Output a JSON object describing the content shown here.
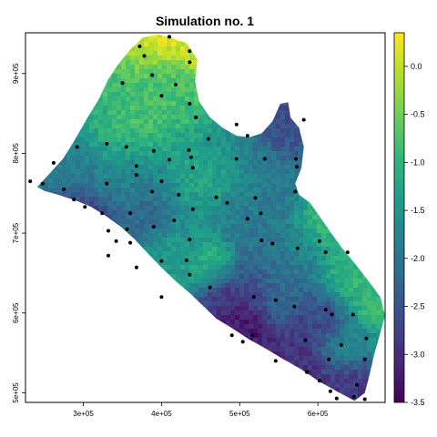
{
  "title": "Simulation no. 1",
  "colors": {
    "viridis": [
      "#440154",
      "#482878",
      "#3e4989",
      "#31688e",
      "#26828e",
      "#1f9e89",
      "#35b779",
      "#6ece58",
      "#b5de2b",
      "#fde725"
    ],
    "station_marker": "#000000",
    "frame": "#000000",
    "background": "#ffffff"
  },
  "chart_data": {
    "type": "heatmap",
    "title": "Simulation no. 1",
    "x_axis": {
      "range": [
        226000,
        686000
      ],
      "ticks": [
        300000,
        400000,
        500000,
        600000
      ],
      "tick_labels": [
        "3e+05",
        "4e+05",
        "5e+05",
        "6e+05"
      ]
    },
    "y_axis": {
      "range": [
        488000,
        951000
      ],
      "ticks": [
        500000,
        600000,
        700000,
        800000,
        900000
      ],
      "tick_labels": [
        "5e+05",
        "6e+05",
        "7e+05",
        "8e+05",
        "9e+05"
      ]
    },
    "colorbar": {
      "range": [
        -3.5,
        0.35
      ],
      "ticks": [
        0.0,
        -0.5,
        -1.0,
        -1.5,
        -2.0,
        -2.5,
        -3.0,
        -3.5
      ],
      "tick_labels": [
        "0.0",
        "-0.5",
        "-1.0",
        "-1.5",
        "-2.0",
        "-2.5",
        "-3.0",
        "-3.5"
      ],
      "palette": "viridis"
    },
    "region_outline": [
      [
        241000,
        758000
      ],
      [
        258000,
        776000
      ],
      [
        274000,
        793000
      ],
      [
        288000,
        815000
      ],
      [
        305000,
        844000
      ],
      [
        320000,
        868000
      ],
      [
        332000,
        893000
      ],
      [
        345000,
        912000
      ],
      [
        360000,
        930000
      ],
      [
        376000,
        945000
      ],
      [
        394000,
        949000
      ],
      [
        412000,
        945000
      ],
      [
        432000,
        938000
      ],
      [
        446000,
        917000
      ],
      [
        443000,
        890000
      ],
      [
        448000,
        865000
      ],
      [
        462000,
        845000
      ],
      [
        478000,
        832000
      ],
      [
        496000,
        822000
      ],
      [
        512000,
        820000
      ],
      [
        528000,
        825000
      ],
      [
        542000,
        840000
      ],
      [
        552000,
        862000
      ],
      [
        562000,
        864000
      ],
      [
        565000,
        845000
      ],
      [
        576000,
        832000
      ],
      [
        582000,
        808000
      ],
      [
        579000,
        782000
      ],
      [
        571000,
        762000
      ],
      [
        576000,
        748000
      ],
      [
        590000,
        738000
      ],
      [
        603000,
        720000
      ],
      [
        617000,
        700000
      ],
      [
        632000,
        680000
      ],
      [
        648000,
        661000
      ],
      [
        664000,
        641000
      ],
      [
        680000,
        620000
      ],
      [
        686000,
        597000
      ],
      [
        679000,
        572000
      ],
      [
        672000,
        548000
      ],
      [
        666000,
        522000
      ],
      [
        660000,
        500000
      ],
      [
        647000,
        490000
      ],
      [
        624000,
        502000
      ],
      [
        602000,
        514000
      ],
      [
        578000,
        530000
      ],
      [
        556000,
        542000
      ],
      [
        534000,
        555000
      ],
      [
        512000,
        567000
      ],
      [
        490000,
        581000
      ],
      [
        470000,
        593000
      ],
      [
        452000,
        610000
      ],
      [
        436000,
        625000
      ],
      [
        418000,
        640000
      ],
      [
        401000,
        656000
      ],
      [
        384000,
        673000
      ],
      [
        366000,
        692000
      ],
      [
        348000,
        708000
      ],
      [
        328000,
        722000
      ],
      [
        310000,
        733000
      ],
      [
        290000,
        741000
      ],
      [
        268000,
        748000
      ],
      [
        250000,
        753000
      ]
    ],
    "field_hotspots": [
      {
        "x": 375000,
        "y": 938000,
        "value": 0.1,
        "radius": 24000
      },
      {
        "x": 402000,
        "y": 948000,
        "value": 0.2,
        "radius": 18000
      },
      {
        "x": 442000,
        "y": 922000,
        "value": 0.1,
        "radius": 14000
      },
      {
        "x": 360000,
        "y": 890000,
        "value": -0.9,
        "radius": 26000
      },
      {
        "x": 420000,
        "y": 870000,
        "value": -0.8,
        "radius": 30000
      },
      {
        "x": 370000,
        "y": 840000,
        "value": -0.7,
        "radius": 28000
      },
      {
        "x": 330000,
        "y": 820000,
        "value": -1.2,
        "radius": 24000
      },
      {
        "x": 280000,
        "y": 790000,
        "value": -1.9,
        "radius": 24000
      },
      {
        "x": 300000,
        "y": 760000,
        "value": -2.0,
        "radius": 22000
      },
      {
        "x": 305000,
        "y": 723000,
        "value": -3.2,
        "radius": 16000
      },
      {
        "x": 290000,
        "y": 740000,
        "value": -2.7,
        "radius": 14000
      },
      {
        "x": 350000,
        "y": 770000,
        "value": -1.8,
        "radius": 24000
      },
      {
        "x": 410000,
        "y": 790000,
        "value": -1.4,
        "radius": 30000
      },
      {
        "x": 390000,
        "y": 740000,
        "value": -2.3,
        "radius": 26000
      },
      {
        "x": 450000,
        "y": 760000,
        "value": -1.0,
        "radius": 28000
      },
      {
        "x": 480000,
        "y": 810000,
        "value": -1.6,
        "radius": 24000
      },
      {
        "x": 560000,
        "y": 830000,
        "value": -2.6,
        "radius": 26000
      },
      {
        "x": 540000,
        "y": 770000,
        "value": -1.9,
        "radius": 28000
      },
      {
        "x": 480000,
        "y": 720000,
        "value": -1.9,
        "radius": 28000
      },
      {
        "x": 470000,
        "y": 668000,
        "value": -0.6,
        "radius": 16000
      },
      {
        "x": 430000,
        "y": 680000,
        "value": -1.4,
        "radius": 24000
      },
      {
        "x": 520000,
        "y": 690000,
        "value": -2.0,
        "radius": 26000
      },
      {
        "x": 610000,
        "y": 710000,
        "value": -0.8,
        "radius": 20000
      },
      {
        "x": 580000,
        "y": 680000,
        "value": -1.7,
        "radius": 22000
      },
      {
        "x": 500000,
        "y": 630000,
        "value": -2.8,
        "radius": 24000
      },
      {
        "x": 560000,
        "y": 640000,
        "value": -2.1,
        "radius": 24000
      },
      {
        "x": 640000,
        "y": 640000,
        "value": -1.0,
        "radius": 22000
      },
      {
        "x": 670000,
        "y": 610000,
        "value": -0.9,
        "radius": 16000
      },
      {
        "x": 600000,
        "y": 590000,
        "value": -2.7,
        "radius": 24000
      },
      {
        "x": 500000,
        "y": 585000,
        "value": -3.3,
        "radius": 16000
      },
      {
        "x": 640000,
        "y": 560000,
        "value": -1.6,
        "radius": 20000
      },
      {
        "x": 640000,
        "y": 510000,
        "value": -2.9,
        "radius": 22000
      },
      {
        "x": 560000,
        "y": 530000,
        "value": -3.0,
        "radius": 22000
      }
    ],
    "stations": [
      [
        410000,
        946000
      ],
      [
        436000,
        928000
      ],
      [
        372000,
        934000
      ],
      [
        378000,
        922000
      ],
      [
        436000,
        914000
      ],
      [
        388000,
        898000
      ],
      [
        350000,
        888000
      ],
      [
        418000,
        886000
      ],
      [
        400000,
        872000
      ],
      [
        436000,
        862000
      ],
      [
        444000,
        845000
      ],
      [
        496000,
        836000
      ],
      [
        510000,
        822000
      ],
      [
        582000,
        842000
      ],
      [
        330000,
        812000
      ],
      [
        355000,
        808000
      ],
      [
        292000,
        808000
      ],
      [
        390000,
        803000
      ],
      [
        435000,
        804000
      ],
      [
        460000,
        818000
      ],
      [
        410000,
        792000
      ],
      [
        438000,
        795000
      ],
      [
        496000,
        793000
      ],
      [
        532000,
        793000
      ],
      [
        572000,
        793000
      ],
      [
        262000,
        788000
      ],
      [
        368000,
        784000
      ],
      [
        440000,
        782000
      ],
      [
        573000,
        783000
      ],
      [
        248000,
        762000
      ],
      [
        232000,
        765000
      ],
      [
        368000,
        773000
      ],
      [
        400000,
        765000
      ],
      [
        330000,
        762000
      ],
      [
        388000,
        752000
      ],
      [
        422000,
        748000
      ],
      [
        470000,
        745000
      ],
      [
        520000,
        744000
      ],
      [
        571000,
        752000
      ],
      [
        275000,
        755000
      ],
      [
        288000,
        742000
      ],
      [
        302000,
        733000
      ],
      [
        324000,
        725000
      ],
      [
        360000,
        725000
      ],
      [
        440000,
        730000
      ],
      [
        484000,
        738000
      ],
      [
        527000,
        725000
      ],
      [
        510000,
        718000
      ],
      [
        416000,
        716000
      ],
      [
        390000,
        708000
      ],
      [
        356000,
        705000
      ],
      [
        332000,
        703000
      ],
      [
        342000,
        690000
      ],
      [
        360000,
        688000
      ],
      [
        332000,
        672000
      ],
      [
        436000,
        692000
      ],
      [
        528000,
        691000
      ],
      [
        542000,
        687000
      ],
      [
        574000,
        681000
      ],
      [
        638000,
        676000
      ],
      [
        602000,
        690000
      ],
      [
        610000,
        676000
      ],
      [
        368000,
        657000
      ],
      [
        400000,
        665000
      ],
      [
        432000,
        666000
      ],
      [
        436000,
        648000
      ],
      [
        400000,
        620000
      ],
      [
        462000,
        632000
      ],
      [
        518000,
        620000
      ],
      [
        546000,
        616000
      ],
      [
        570000,
        608000
      ],
      [
        610000,
        604000
      ],
      [
        618000,
        598000
      ],
      [
        645000,
        598000
      ],
      [
        662000,
        568000
      ],
      [
        490000,
        572000
      ],
      [
        516000,
        572000
      ],
      [
        584000,
        566000
      ],
      [
        630000,
        560000
      ],
      [
        660000,
        542000
      ],
      [
        614000,
        542000
      ],
      [
        546000,
        540000
      ],
      [
        586000,
        526000
      ],
      [
        602000,
        515000
      ],
      [
        616000,
        502000
      ],
      [
        650000,
        510000
      ],
      [
        660000,
        492000
      ],
      [
        624000,
        493000
      ],
      [
        646000,
        495000
      ],
      [
        504000,
        564000
      ]
    ]
  }
}
